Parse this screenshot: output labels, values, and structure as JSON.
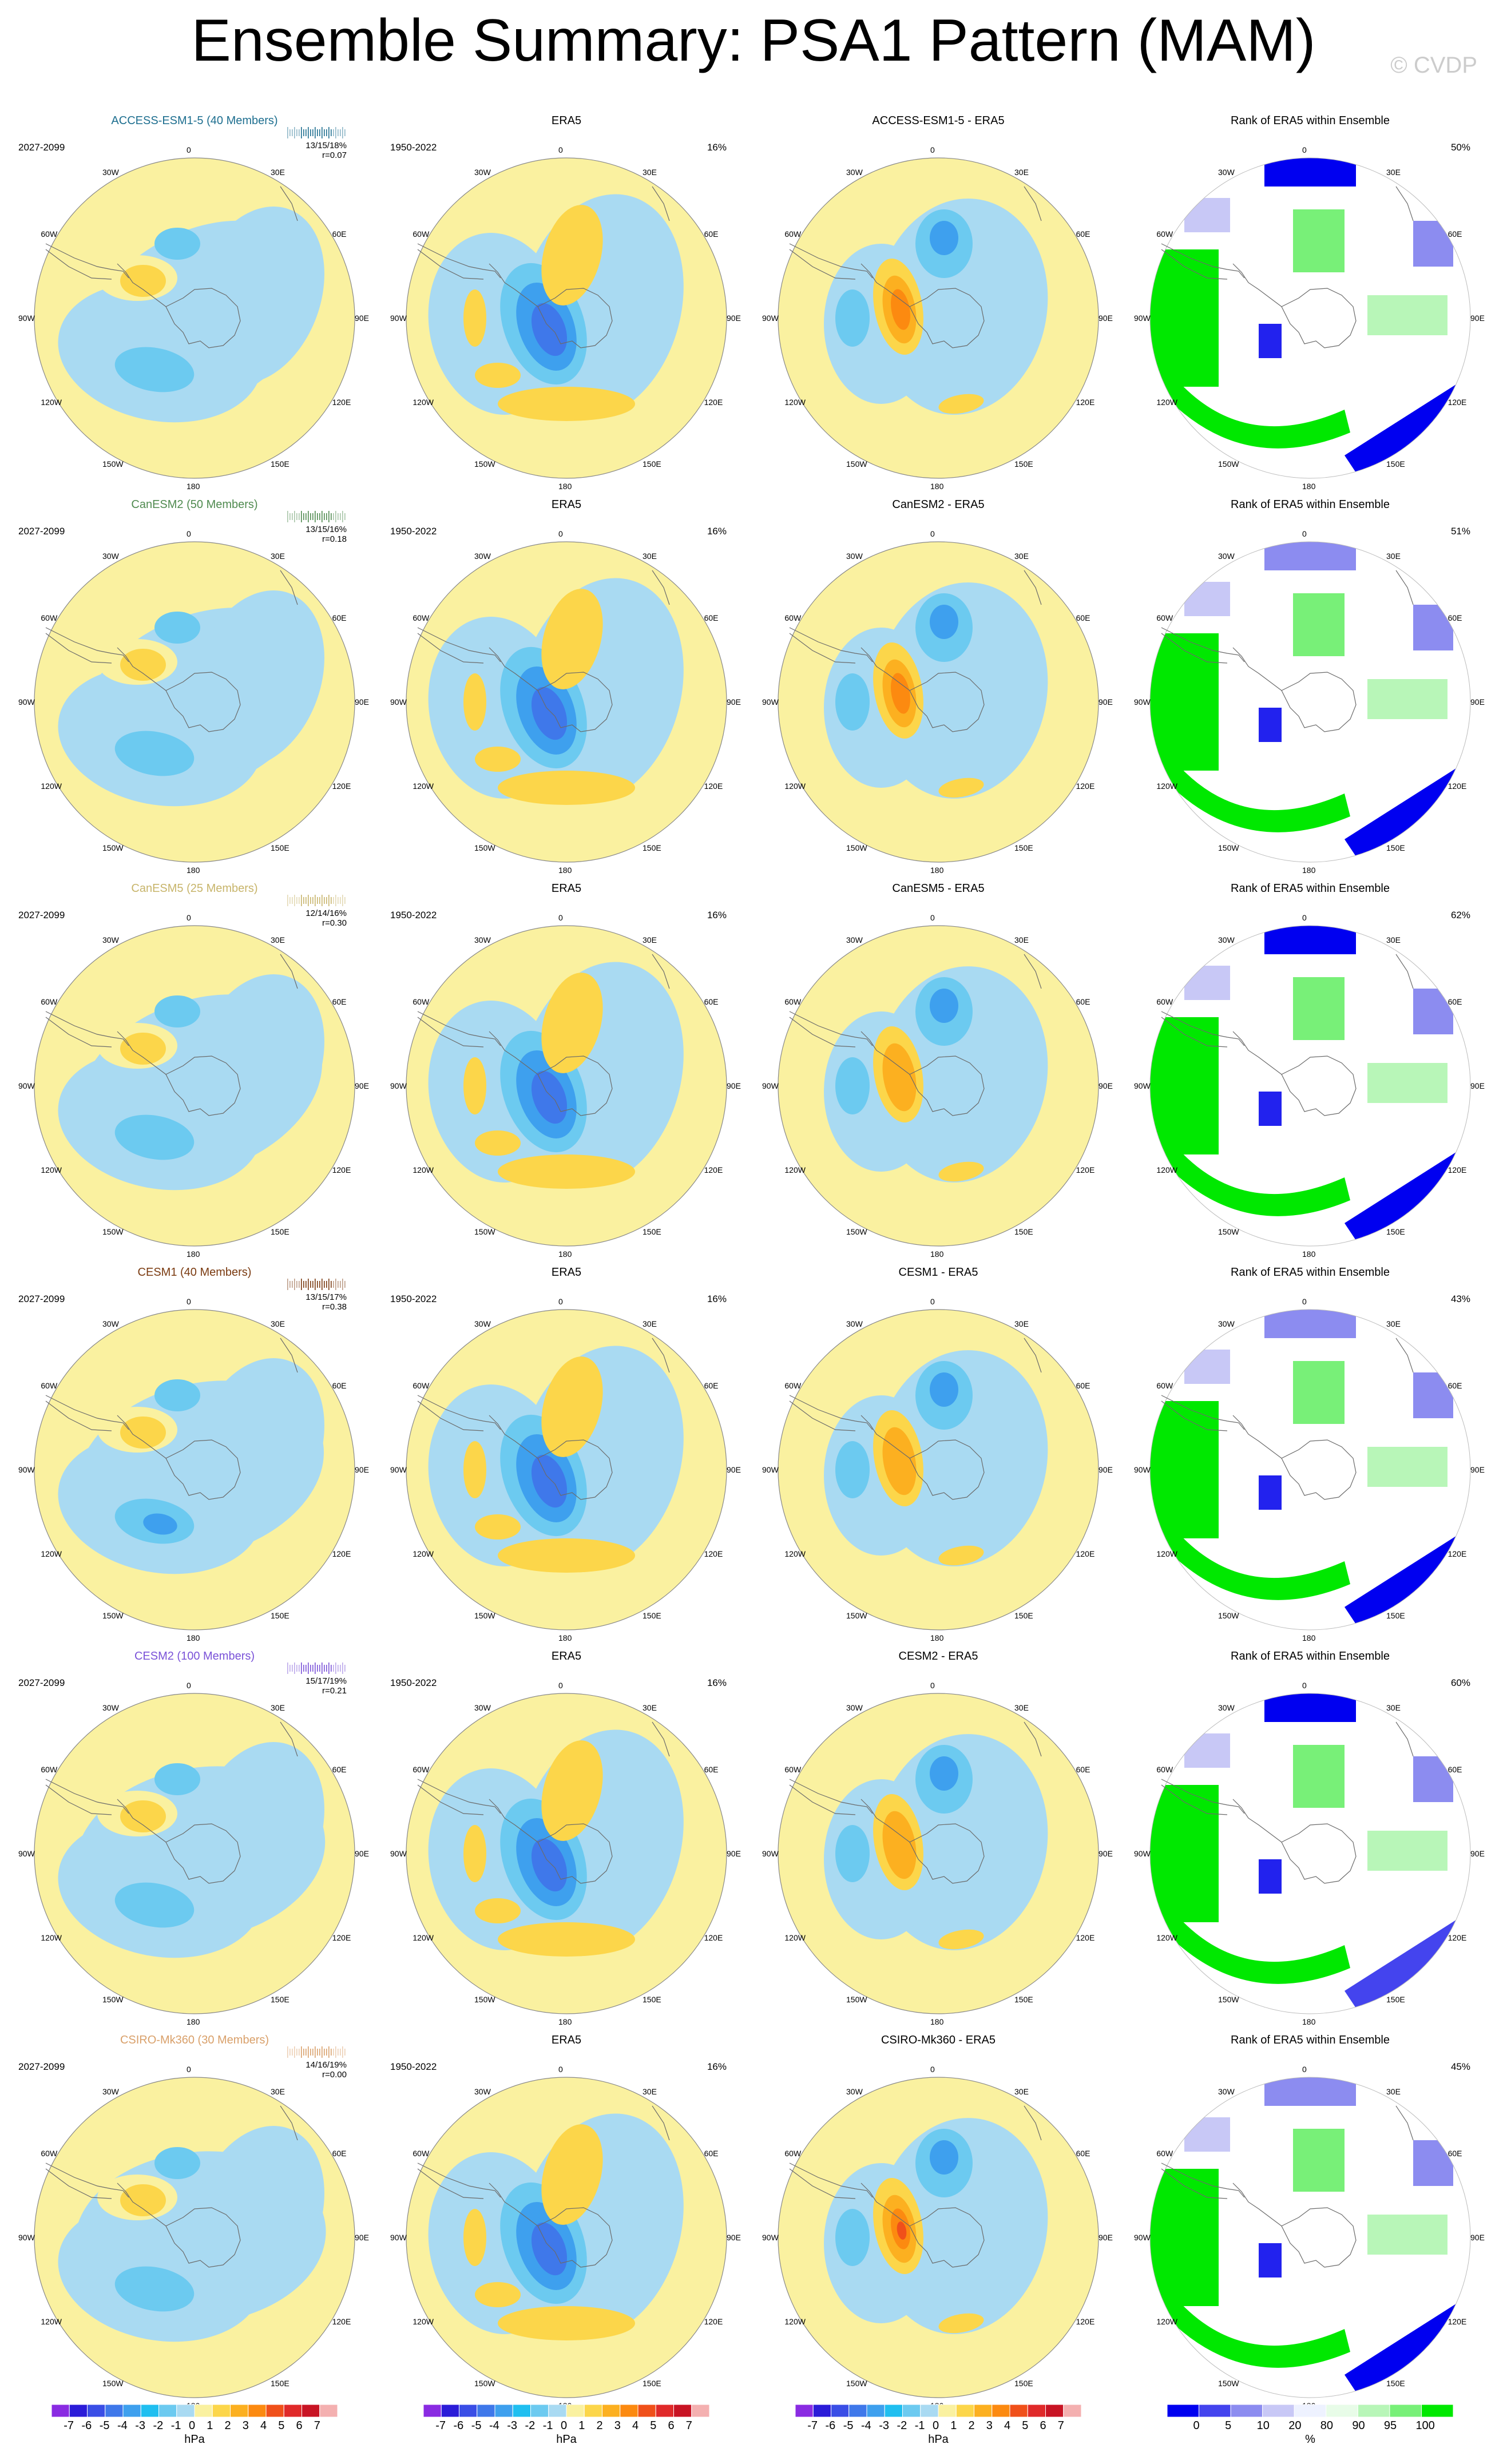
{
  "title": "Ensemble Summary: PSA1 Pattern (MAM)",
  "copyright": "© CVDP",
  "longitude_labels": [
    "0",
    "30E",
    "60E",
    "90E",
    "120E",
    "150E",
    "180",
    "150W",
    "120W",
    "90W",
    "60W",
    "30W"
  ],
  "rows": [
    {
      "model": "ACCESS-ESM1-5 (40 Members)",
      "color": "#1d6e8f",
      "stats": "13/15/18%",
      "corr": "r=0.07",
      "diff_title": "ACCESS-ESM1-5 - ERA5",
      "rank_pct": "50%"
    },
    {
      "model": "CanESM2 (50 Members)",
      "color": "#4f8a4f",
      "stats": "13/15/16%",
      "corr": "r=0.18",
      "diff_title": "CanESM2 - ERA5",
      "rank_pct": "51%"
    },
    {
      "model": "CanESM5 (25 Members)",
      "color": "#c7b46a",
      "stats": "12/14/16%",
      "corr": "r=0.30",
      "diff_title": "CanESM5 - ERA5",
      "rank_pct": "62%"
    },
    {
      "model": "CESM1 (40 Members)",
      "color": "#7a3a10",
      "stats": "13/15/17%",
      "corr": "r=0.38",
      "diff_title": "CESM1 - ERA5",
      "rank_pct": "43%"
    },
    {
      "model": "CESM2 (100 Members)",
      "color": "#7a52d8",
      "stats": "15/17/19%",
      "corr": "r=0.21",
      "diff_title": "CESM2 - ERA5",
      "rank_pct": "60%"
    },
    {
      "model": "CSIRO-Mk360 (30 Members)",
      "color": "#d9a06a",
      "stats": "14/16/19%",
      "corr": "r=0.00",
      "diff_title": "CSIRO-Mk360 - ERA5",
      "rank_pct": "45%"
    }
  ],
  "model_years": "2027-2099",
  "obs": {
    "title": "ERA5",
    "years": "1950-2022",
    "pct": "16%"
  },
  "rank_title": "Rank of ERA5 within Ensemble",
  "colorbar_hpa": {
    "ticks": [
      "-7",
      "-6",
      "-5",
      "-4",
      "-3",
      "-2",
      "-1",
      "0",
      "1",
      "2",
      "3",
      "4",
      "5",
      "6",
      "7"
    ],
    "unit": "hPa",
    "colors": [
      "#8a2be2",
      "#2b1cd8",
      "#3a4ee6",
      "#3f78ea",
      "#3ea0ee",
      "#20bff0",
      "#6ccaf0",
      "#a9daf2",
      "#faf1a0",
      "#fcd64a",
      "#fcb020",
      "#fc8a10",
      "#f0501a",
      "#e02a2a",
      "#c81424",
      "#f4b0b0"
    ]
  },
  "colorbar_rank": {
    "ticks": [
      "0",
      "5",
      "10",
      "20",
      "80",
      "90",
      "95",
      "100"
    ],
    "unit": "%",
    "colors": [
      "#0000f0",
      "#4444ee",
      "#8c8cf0",
      "#c8c8f6",
      "#eef2ff",
      "#e8fce8",
      "#b8f6b8",
      "#78f078",
      "#00e800"
    ]
  }
}
